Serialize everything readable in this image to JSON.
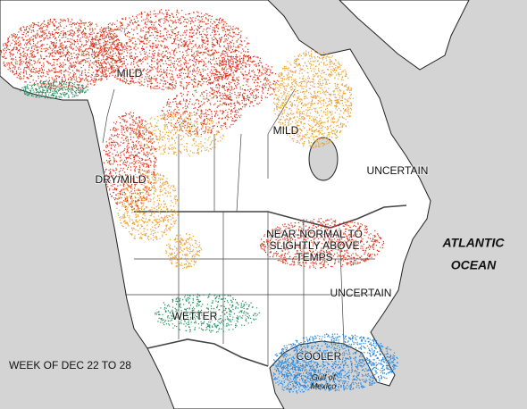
{
  "title": "WEEK OF DEC 22 TO 28",
  "regions": [
    {
      "label": "MILD"
    },
    {
      "label": "MILD"
    },
    {
      "label": "DRY/MILD"
    },
    {
      "label": "UNCERTAIN"
    },
    {
      "lines": [
        "NEAR-NORMAL TO",
        "SLIGHTLY ABOVE",
        "TEMPS"
      ]
    },
    {
      "label": "UNCERTAIN"
    },
    {
      "label": "WETTER"
    },
    {
      "label": "COOLER"
    }
  ],
  "water": [
    {
      "lines": [
        "ATLANTIC",
        "OCEAN"
      ]
    },
    {
      "lines": [
        "Gulf of",
        "Mexico"
      ]
    }
  ]
}
